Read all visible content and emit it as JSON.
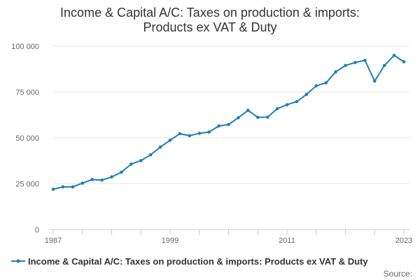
{
  "chart_data": {
    "type": "line",
    "title_lines": [
      "Income & Capital A/C: Taxes on production & imports:",
      "Products ex VAT & Duty"
    ],
    "series": [
      {
        "name": "Income & Capital A/C: Taxes on production & imports: Products ex VAT & Duty",
        "color": "#1f7fb6",
        "x": [
          1987,
          1988,
          1989,
          1990,
          1991,
          1992,
          1993,
          1994,
          1995,
          1996,
          1997,
          1998,
          1999,
          2000,
          2001,
          2002,
          2003,
          2004,
          2005,
          2006,
          2007,
          2008,
          2009,
          2010,
          2011,
          2012,
          2013,
          2014,
          2015,
          2016,
          2017,
          2018,
          2019,
          2020,
          2021,
          2022,
          2023
        ],
        "values": [
          22000,
          23300,
          23300,
          25300,
          27300,
          27000,
          28700,
          31300,
          35700,
          37600,
          40800,
          45000,
          48700,
          52300,
          51200,
          52500,
          53200,
          56500,
          57300,
          61000,
          65000,
          61200,
          61300,
          65900,
          68100,
          69800,
          73700,
          78400,
          80000,
          86000,
          89500,
          91100,
          92300,
          81000,
          89500,
          95000,
          91500
        ]
      }
    ],
    "x_ticks": [
      "1987",
      "1999",
      "2011",
      "2023"
    ],
    "x_tick_values": [
      1987,
      1999,
      2011,
      2023
    ],
    "y_ticks": [
      "0",
      "25 000",
      "50 000",
      "75 000",
      "100 000"
    ],
    "y_tick_values": [
      0,
      25000,
      50000,
      75000,
      100000
    ],
    "xlim": [
      1987,
      2023
    ],
    "ylim": [
      0,
      100000
    ],
    "grid": "horizontal",
    "legend_position": "bottom",
    "source_label": "Source:"
  }
}
